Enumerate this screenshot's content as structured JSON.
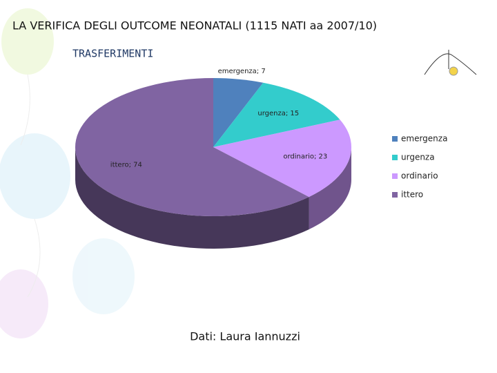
{
  "chart_data": {
    "type": "pie",
    "title": "LA VERIFICA DEGLI OUTCOME NEONATALI (1115 NATI aa 2007/10)",
    "subtitle": "TRASFERIMENTI",
    "categories": [
      "emergenza",
      "urgenza",
      "ordinario",
      "ittero"
    ],
    "values": [
      7,
      15,
      23,
      74
    ],
    "value_labels": [
      "emergenza; 7",
      "urgenza; 15",
      "ordinario; 23",
      "ittero; 74"
    ],
    "colors": [
      "#4f81bd",
      "#33cccc",
      "#cc99ff",
      "#8064a2"
    ],
    "legend": "right",
    "source": "Dati: Laura Iannuzzi"
  }
}
